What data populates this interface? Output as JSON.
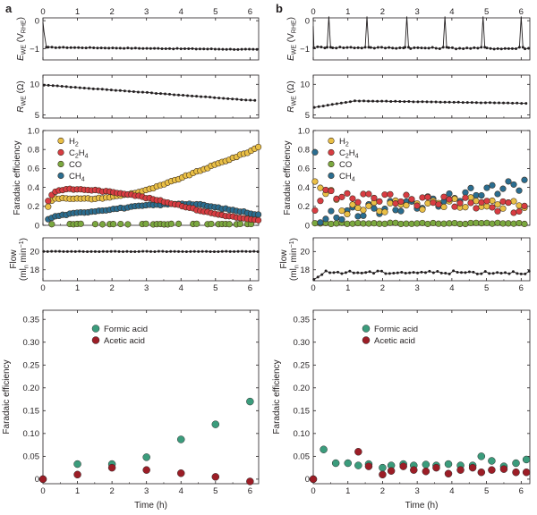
{
  "figure": {
    "panel_labels": [
      "a",
      "b"
    ],
    "colors": {
      "H2": "#e9bf45",
      "C2H4": "#d83c42",
      "CO": "#7aa83f",
      "CH4": "#2a6d90",
      "formic": "#3b9c7c",
      "acetic": "#9c1d26",
      "line": "#231f20"
    }
  },
  "axis_labels": {
    "e_we": "E",
    "e_we_sub": "WE",
    "e_we_unit_open": " (V",
    "e_we_unit_sub": "RHE",
    "e_we_unit_close": ")",
    "r_we": "R",
    "r_we_sub": "WE",
    "r_we_unit": " (Ω)",
    "fe": "Faradaic efficiency",
    "flow_line1": "Flow",
    "flow_line2_open": "(ml",
    "flow_line2_sub": "n",
    "flow_line2_mid": " min",
    "flow_line2_sup": "−1",
    "flow_line2_close": ")",
    "time": "Time (h)"
  },
  "legend_gas": [
    {
      "key": "H2",
      "base": "H",
      "sub": "2",
      "tail": ""
    },
    {
      "key": "C2H4",
      "base": "C",
      "sub": "2",
      "tail": "H",
      "sub2": "4"
    },
    {
      "key": "CO",
      "base": "CO",
      "sub": "",
      "tail": ""
    },
    {
      "key": "CH4",
      "base": "CH",
      "sub": "4",
      "tail": ""
    }
  ],
  "legend_liquid": [
    "Formic acid",
    "Acetic acid"
  ],
  "chart_data": [
    {
      "panel": "a",
      "type": "scatter",
      "x_range": [
        0,
        6.25
      ],
      "x_ticks": [
        "0",
        "1",
        "2",
        "3",
        "4",
        "5",
        "6"
      ],
      "subplots": [
        {
          "name": "E_WE",
          "ylabel": "E_WE (V_RHE)",
          "ylim": [
            -1.4,
            0.1
          ],
          "y_ticks": [
            "0",
            "−1"
          ],
          "y_tick_values": [
            0,
            -1
          ],
          "series": [
            {
              "name": "E_WE",
              "x": [
                0,
                0.03,
                0.1
              ],
              "y": [
                -0.05,
                -0.4,
                -0.95
              ],
              "steady_value": -0.95,
              "steady_end": -1.03
            }
          ]
        },
        {
          "name": "R_WE",
          "ylabel": "R_WE (Ω)",
          "ylim": [
            4.5,
            11.5
          ],
          "y_ticks": [
            "5",
            "10"
          ],
          "y_tick_values": [
            5,
            10
          ],
          "series": [
            {
              "name": "R_WE",
              "start": 9.9,
              "end": 7.3
            }
          ]
        },
        {
          "name": "FE_gas",
          "ylabel": "Faradaic efficiency",
          "ylim": [
            0,
            1.0
          ],
          "y_ticks": [
            "0",
            "0.2",
            "0.4",
            "0.6",
            "0.8",
            "1.0"
          ],
          "y_tick_values": [
            0,
            0.2,
            0.4,
            0.6,
            0.8,
            1.0
          ],
          "series": [
            {
              "name": "H2",
              "x": [
                0.15,
                0.3,
                0.6,
                1.0,
                1.5,
                2.0,
                2.5,
                3.0,
                3.5,
                4.0,
                4.5,
                5.0,
                5.5,
                6.0,
                6.25
              ],
              "y": [
                0.2,
                0.28,
                0.29,
                0.28,
                0.28,
                0.3,
                0.33,
                0.37,
                0.43,
                0.5,
                0.57,
                0.64,
                0.71,
                0.78,
                0.83
              ]
            },
            {
              "name": "C2H4",
              "x": [
                0.15,
                0.3,
                0.6,
                1.0,
                1.5,
                2.0,
                2.5,
                3.0,
                3.5,
                4.0,
                4.5,
                5.0,
                5.5,
                6.0,
                6.25
              ],
              "y": [
                0.26,
                0.35,
                0.38,
                0.38,
                0.37,
                0.35,
                0.33,
                0.29,
                0.25,
                0.21,
                0.16,
                0.12,
                0.09,
                0.06,
                0.05
              ]
            },
            {
              "name": "CO",
              "x": [
                0.15,
                6.25
              ],
              "y": [
                0.01,
                0.01
              ]
            },
            {
              "name": "CH4",
              "x": [
                0.15,
                0.3,
                0.6,
                1.0,
                1.5,
                2.0,
                2.5,
                3.0,
                3.5,
                4.0,
                4.5,
                5.0,
                5.5,
                6.0,
                6.25
              ],
              "y": [
                0.06,
                0.09,
                0.11,
                0.13,
                0.15,
                0.17,
                0.19,
                0.21,
                0.22,
                0.23,
                0.22,
                0.19,
                0.16,
                0.13,
                0.11
              ]
            }
          ]
        },
        {
          "name": "Flow",
          "ylabel": "Flow (ml_n min^-1)",
          "ylim": [
            16.8,
            21.5
          ],
          "y_ticks": [
            "18",
            "20"
          ],
          "y_tick_values": [
            18,
            20
          ],
          "series": [
            {
              "name": "Flow",
              "value": 20
            }
          ]
        },
        {
          "name": "FE_liquid",
          "ylabel": "Faradaic efficiency",
          "xlabel": "Time (h)",
          "ylim": [
            -0.01,
            0.37
          ],
          "y_ticks": [
            "0",
            "0.05",
            "0.10",
            "0.15",
            "0.20",
            "0.25",
            "0.30",
            "0.35"
          ],
          "y_tick_values": [
            0,
            0.05,
            0.1,
            0.15,
            0.2,
            0.25,
            0.3,
            0.35
          ],
          "series": [
            {
              "name": "Formic acid",
              "x": [
                0,
                1,
                2,
                3,
                4,
                5,
                6
              ],
              "y": [
                0,
                0.033,
                0.033,
                0.048,
                0.087,
                0.12,
                0.17
              ]
            },
            {
              "name": "Acetic acid",
              "x": [
                0,
                1,
                2,
                3,
                4,
                5,
                6
              ],
              "y": [
                0,
                0.01,
                0.025,
                0.02,
                0.013,
                0.005,
                -0.005
              ]
            }
          ]
        }
      ]
    },
    {
      "panel": "b",
      "type": "scatter",
      "x_range": [
        0,
        6.25
      ],
      "x_ticks": [
        "0",
        "1",
        "2",
        "3",
        "4",
        "5",
        "6"
      ],
      "subplots": [
        {
          "name": "E_WE",
          "ylabel": "E_WE (V_RHE)",
          "ylim": [
            -1.4,
            0.1
          ],
          "y_ticks": [
            "0",
            "−1"
          ],
          "y_tick_values": [
            0,
            -1
          ],
          "series": [
            {
              "name": "E_WE",
              "steady_value": -0.95,
              "spike_times": [
                0.45,
                1.55,
                2.7,
                3.8,
                4.9,
                6.0
              ],
              "spike_value": 0.15
            }
          ]
        },
        {
          "name": "R_WE",
          "ylabel": "R_WE (Ω)",
          "ylim": [
            4.5,
            11.5
          ],
          "y_ticks": [
            "5",
            "10"
          ],
          "y_tick_values": [
            5,
            10
          ],
          "series": [
            {
              "name": "R_WE",
              "start": 6.2,
              "peak": 7.3,
              "end": 6.9
            }
          ]
        },
        {
          "name": "FE_gas",
          "ylabel": "Faradaic efficiency",
          "ylim": [
            0,
            1.0
          ],
          "y_ticks": [
            "0",
            "0.2",
            "0.4",
            "0.6",
            "0.8",
            "1.0"
          ],
          "y_tick_values": [
            0,
            0.2,
            0.4,
            0.6,
            0.8,
            1.0
          ],
          "series": [
            {
              "name": "H2",
              "x": [
                0.05,
                0.2,
                0.45,
                0.7,
                1.0,
                1.5,
                2.0,
                2.5,
                3.0,
                3.5,
                4.0,
                4.5,
                5.0,
                5.5,
                6.0,
                6.2
              ],
              "y": [
                0.43,
                0.42,
                0.35,
                0.22,
                0.14,
                0.22,
                0.18,
                0.25,
                0.2,
                0.23,
                0.22,
                0.24,
                0.22,
                0.23,
                0.22,
                0.21
              ]
            },
            {
              "name": "C2H4",
              "x": [
                0.05,
                0.2,
                0.45,
                0.7,
                1.0,
                1.5,
                2.0,
                2.5,
                3.0,
                3.5,
                4.0,
                4.5,
                5.0,
                5.5,
                6.0,
                6.2
              ],
              "y": [
                0.2,
                0.3,
                0.35,
                0.33,
                0.3,
                0.31,
                0.3,
                0.28,
                0.27,
                0.25,
                0.24,
                0.23,
                0.22,
                0.2,
                0.18,
                0.17
              ]
            },
            {
              "name": "CO",
              "x": [
                0.05,
                6.2
              ],
              "y": [
                0.02,
                0.02
              ]
            },
            {
              "name": "CH4",
              "x": [
                0.05,
                0.2,
                0.45,
                0.7,
                1.0,
                1.5,
                2.0,
                2.5,
                3.0,
                3.5,
                4.0,
                4.5,
                5.0,
                5.5,
                6.0,
                6.2
              ],
              "y": [
                0.78,
                0.05,
                0.08,
                0.1,
                0.12,
                0.15,
                0.17,
                0.2,
                0.22,
                0.26,
                0.3,
                0.33,
                0.37,
                0.4,
                0.45,
                0.47
              ]
            }
          ]
        },
        {
          "name": "Flow",
          "ylabel": "Flow (ml_n min^-1)",
          "ylim": [
            16.8,
            21.5
          ],
          "y_ticks": [
            "18",
            "20"
          ],
          "y_tick_values": [
            18,
            20
          ],
          "series": [
            {
              "name": "Flow",
              "start": 16.9,
              "value": 17.7
            }
          ]
        },
        {
          "name": "FE_liquid",
          "ylabel": "Faradaic efficiency",
          "xlabel": "Time (h)",
          "ylim": [
            -0.01,
            0.37
          ],
          "y_ticks": [
            "0",
            "0.05",
            "0.10",
            "0.15",
            "0.20",
            "0.25",
            "0.30",
            "0.35"
          ],
          "y_tick_values": [
            0,
            0.05,
            0.1,
            0.15,
            0.2,
            0.25,
            0.3,
            0.35
          ],
          "series": [
            {
              "name": "Formic acid",
              "x": [
                0,
                0.3,
                0.65,
                1.0,
                1.3,
                1.6,
                2.0,
                2.25,
                2.6,
                2.9,
                3.25,
                3.55,
                3.9,
                4.25,
                4.6,
                4.85,
                5.15,
                5.5,
                5.85,
                6.15
              ],
              "y": [
                0,
                0.065,
                0.035,
                0.035,
                0.03,
                0.033,
                0.025,
                0.03,
                0.033,
                0.03,
                0.032,
                0.03,
                0.033,
                0.03,
                0.03,
                0.05,
                0.04,
                0.028,
                0.035,
                0.043
              ]
            },
            {
              "name": "Acetic acid",
              "x": [
                0,
                1.3,
                1.6,
                2.0,
                2.25,
                2.6,
                2.9,
                3.25,
                3.55,
                3.9,
                4.25,
                4.6,
                4.85,
                5.15,
                5.5,
                5.85,
                6.15
              ],
              "y": [
                0,
                0.06,
                0.028,
                0.01,
                0.018,
                0.028,
                0.02,
                0.017,
                0.025,
                0.012,
                0.02,
                0.025,
                0.015,
                0.02,
                0.022,
                0.015,
                0.015
              ]
            }
          ]
        }
      ]
    }
  ]
}
